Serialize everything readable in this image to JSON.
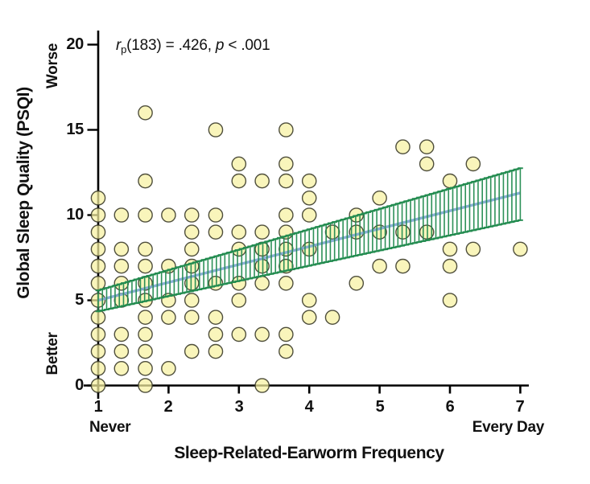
{
  "chart_data": {
    "type": "scatter",
    "xlabel": "Sleep-Related-Earworm Frequency",
    "ylabel": "Global Sleep Quality (PSQI)",
    "y_direction_labels": {
      "top": "Worse",
      "bottom": "Better"
    },
    "x_end_labels": {
      "left": "Never",
      "right": "Every Day"
    },
    "xlim": [
      1,
      7
    ],
    "ylim": [
      0,
      20
    ],
    "x_tick_labels": [
      "1",
      "2",
      "3",
      "4",
      "5",
      "6",
      "7"
    ],
    "x_ticks": [
      1,
      2,
      3,
      4,
      5,
      6,
      7
    ],
    "y_tick_labels": [
      "20",
      "15",
      "10",
      "5",
      "0"
    ],
    "y_ticks": [
      0,
      5,
      10,
      15,
      20
    ],
    "grid": false,
    "legend": "none",
    "annotation": {
      "r_symbol": "r",
      "r_subscript": "p",
      "mid": "(183) = .426, ",
      "p_symbol": "p",
      "tail": " < .001",
      "full_text": "rp(183) = .426, p < .001"
    },
    "points": [
      [
        1,
        0
      ],
      [
        1,
        1
      ],
      [
        1,
        2
      ],
      [
        1,
        3
      ],
      [
        1,
        4
      ],
      [
        1,
        5
      ],
      [
        1,
        6
      ],
      [
        1,
        7
      ],
      [
        1,
        8
      ],
      [
        1,
        9
      ],
      [
        1,
        10
      ],
      [
        1,
        11
      ],
      [
        1.33,
        1
      ],
      [
        1.33,
        2
      ],
      [
        1.33,
        3
      ],
      [
        1.33,
        5
      ],
      [
        1.33,
        6
      ],
      [
        1.33,
        7
      ],
      [
        1.33,
        8
      ],
      [
        1.33,
        10
      ],
      [
        1.67,
        0
      ],
      [
        1.67,
        1
      ],
      [
        1.67,
        2
      ],
      [
        1.67,
        3
      ],
      [
        1.67,
        4
      ],
      [
        1.67,
        5
      ],
      [
        1.67,
        6
      ],
      [
        1.67,
        7
      ],
      [
        1.67,
        8
      ],
      [
        1.67,
        10
      ],
      [
        1.67,
        12
      ],
      [
        1.67,
        16
      ],
      [
        2,
        1
      ],
      [
        2,
        4
      ],
      [
        2,
        5
      ],
      [
        2,
        7
      ],
      [
        2,
        10
      ],
      [
        2.33,
        2
      ],
      [
        2.33,
        4
      ],
      [
        2.33,
        5
      ],
      [
        2.33,
        6
      ],
      [
        2.33,
        7
      ],
      [
        2.33,
        8
      ],
      [
        2.33,
        9
      ],
      [
        2.33,
        10
      ],
      [
        2.67,
        2
      ],
      [
        2.67,
        3
      ],
      [
        2.67,
        4
      ],
      [
        2.67,
        6
      ],
      [
        2.67,
        9
      ],
      [
        2.67,
        10
      ],
      [
        2.67,
        15
      ],
      [
        3,
        3
      ],
      [
        3,
        5
      ],
      [
        3,
        6
      ],
      [
        3,
        8
      ],
      [
        3,
        9
      ],
      [
        3,
        12
      ],
      [
        3,
        13
      ],
      [
        3.33,
        0
      ],
      [
        3.33,
        3
      ],
      [
        3.33,
        6
      ],
      [
        3.33,
        7
      ],
      [
        3.33,
        8
      ],
      [
        3.33,
        9
      ],
      [
        3.33,
        12
      ],
      [
        3.67,
        2
      ],
      [
        3.67,
        3
      ],
      [
        3.67,
        6
      ],
      [
        3.67,
        7
      ],
      [
        3.67,
        8
      ],
      [
        3.67,
        9
      ],
      [
        3.67,
        10
      ],
      [
        3.67,
        12
      ],
      [
        3.67,
        13
      ],
      [
        3.67,
        15
      ],
      [
        4,
        4
      ],
      [
        4,
        5
      ],
      [
        4,
        8
      ],
      [
        4,
        10
      ],
      [
        4,
        11
      ],
      [
        4,
        12
      ],
      [
        4.33,
        4
      ],
      [
        4.33,
        9
      ],
      [
        4.67,
        6
      ],
      [
        4.67,
        9
      ],
      [
        4.67,
        10
      ],
      [
        5,
        7
      ],
      [
        5,
        9
      ],
      [
        5,
        11
      ],
      [
        5.33,
        7
      ],
      [
        5.33,
        9
      ],
      [
        5.33,
        14
      ],
      [
        5.67,
        9
      ],
      [
        5.67,
        13
      ],
      [
        5.67,
        14
      ],
      [
        6,
        5
      ],
      [
        6,
        7
      ],
      [
        6,
        8
      ],
      [
        6,
        12
      ],
      [
        6.33,
        8
      ],
      [
        6.33,
        13
      ],
      [
        7,
        8
      ]
    ],
    "regression_line": {
      "x": [
        1,
        7
      ],
      "y": [
        5.0,
        11.3
      ]
    },
    "ci_band": {
      "x": [
        1,
        7
      ],
      "top": [
        5.58,
        12.75
      ],
      "bottom": [
        4.35,
        9.7
      ]
    },
    "colors": {
      "point_fill": "#f7f1a1",
      "point_stroke": "#3c3c2a",
      "band_green": "#228b4f",
      "line_blue": "#7fa6d2",
      "axis": "#000000"
    }
  }
}
